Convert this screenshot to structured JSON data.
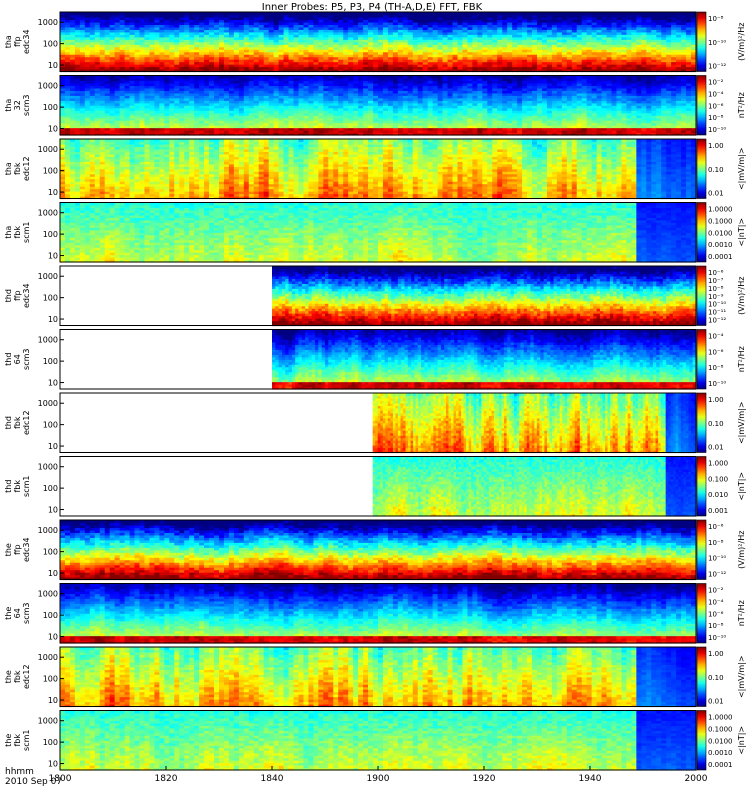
{
  "title": "Inner Probes: P5, P3, P4 (TH-A,D,E) FFT, FBK",
  "footer": {
    "time_label": "hhmm",
    "date_label": "2010 Sep 07"
  },
  "chart_data": {
    "type": "heatmap",
    "title": "Inner Probes: P5, P3, P4 (TH-A,D,E) FFT, FBK",
    "x_ticks": [
      "1800",
      "1820",
      "1840",
      "1900",
      "1920",
      "1940",
      "2000"
    ],
    "x_range": [
      "18:00",
      "20:00"
    ],
    "panels": [
      {
        "probe": "tha",
        "ylabel": [
          "tha",
          "ffp",
          "edc34"
        ],
        "yscale": "log",
        "yticks": [
          "10",
          "100",
          "1000"
        ],
        "cbar_label": "(V/m)²/Hz",
        "cbar_ticks": [
          "10⁻⁸",
          "10⁻¹⁰",
          "10⁻¹²"
        ],
        "data_start": "18:00",
        "kind": "ffp-e"
      },
      {
        "probe": "tha",
        "ylabel": [
          "tha",
          "32",
          "scm3"
        ],
        "yscale": "log",
        "yticks": [
          "10",
          "100",
          "1000"
        ],
        "cbar_label": "nT²/Hz",
        "cbar_ticks": [
          "10⁻²",
          "10⁻⁴",
          "10⁻⁶",
          "10⁻⁸",
          "10⁻¹⁰"
        ],
        "data_start": "18:00",
        "kind": "scm"
      },
      {
        "probe": "tha",
        "ylabel": [
          "tha",
          "fbk",
          "edc12"
        ],
        "yscale": "log",
        "yticks": [
          "10",
          "100",
          "1000"
        ],
        "cbar_label": "<|mV/m|>",
        "cbar_ticks": [
          "1.00",
          "0.10",
          "0.01"
        ],
        "data_start": "18:00",
        "kind": "fbk-e"
      },
      {
        "probe": "tha",
        "ylabel": [
          "tha",
          "fbk",
          "scm1"
        ],
        "yscale": "log",
        "yticks": [
          "10",
          "100",
          "1000"
        ],
        "cbar_label": "<|nT|>",
        "cbar_ticks": [
          "1.0000",
          "0.1000",
          "0.0100",
          "0.0010",
          "0.0001"
        ],
        "data_start": "18:00",
        "kind": "fbk-b"
      },
      {
        "probe": "thd",
        "ylabel": [
          "thd",
          "ffp",
          "edc34"
        ],
        "yscale": "log",
        "yticks": [
          "10",
          "100",
          "1000"
        ],
        "cbar_label": "(V/m)²/Hz",
        "cbar_ticks": [
          "10⁻⁶",
          "10⁻⁷",
          "10⁻⁸",
          "10⁻⁹",
          "10⁻¹⁰",
          "10⁻¹¹",
          "10⁻¹²"
        ],
        "data_start": "18:40",
        "kind": "ffp-e"
      },
      {
        "probe": "thd",
        "ylabel": [
          "thd",
          "64",
          "scm3"
        ],
        "yscale": "log",
        "yticks": [
          "10",
          "100",
          "1000"
        ],
        "cbar_label": "nT²/Hz",
        "cbar_ticks": [
          "10⁻⁴",
          "10⁻⁶",
          "10⁻⁸",
          "10⁻¹⁰"
        ],
        "data_start": "18:40",
        "kind": "scm"
      },
      {
        "probe": "thd",
        "ylabel": [
          "thd",
          "fbk",
          "edc12"
        ],
        "yscale": "log",
        "yticks": [
          "10",
          "100",
          "1000"
        ],
        "cbar_label": "<|mV/m|>",
        "cbar_ticks": [
          "1.00",
          "0.10",
          "0.01"
        ],
        "data_start": "18:59",
        "kind": "fbk-e"
      },
      {
        "probe": "thd",
        "ylabel": [
          "thd",
          "fbk",
          "scm1"
        ],
        "yscale": "log",
        "yticks": [
          "10",
          "100",
          "1000"
        ],
        "cbar_label": "<|nT|>",
        "cbar_ticks": [
          "1.000",
          "0.100",
          "0.010",
          "0.001"
        ],
        "data_start": "18:59",
        "kind": "fbk-b"
      },
      {
        "probe": "the",
        "ylabel": [
          "the",
          "ffp",
          "edc34"
        ],
        "yscale": "log",
        "yticks": [
          "10",
          "100",
          "1000"
        ],
        "cbar_label": "(V/m)²/Hz",
        "cbar_ticks": [
          "10⁻⁶",
          "10⁻⁸",
          "10⁻¹⁰",
          "10⁻¹²"
        ],
        "data_start": "18:00",
        "kind": "ffp-e"
      },
      {
        "probe": "the",
        "ylabel": [
          "the",
          "64",
          "scm3"
        ],
        "yscale": "log",
        "yticks": [
          "10",
          "100",
          "1000"
        ],
        "cbar_label": "nT²/Hz",
        "cbar_ticks": [
          "10⁻²",
          "10⁻⁴",
          "10⁻⁶",
          "10⁻⁸",
          "10⁻¹⁰"
        ],
        "data_start": "18:00",
        "kind": "scm"
      },
      {
        "probe": "the",
        "ylabel": [
          "the",
          "fbk",
          "edc12"
        ],
        "yscale": "log",
        "yticks": [
          "10",
          "100",
          "1000"
        ],
        "cbar_label": "<|mV/m|>",
        "cbar_ticks": [
          "1.00",
          "0.10",
          "0.01"
        ],
        "data_start": "18:00",
        "kind": "fbk-e"
      },
      {
        "probe": "the",
        "ylabel": [
          "the",
          "fbk",
          "scm1"
        ],
        "yscale": "log",
        "yticks": [
          "10",
          "100",
          "1000"
        ],
        "cbar_label": "<|nT|>",
        "cbar_ticks": [
          "1.0000",
          "0.1000",
          "0.0100",
          "0.0010",
          "0.0001"
        ],
        "data_start": "18:00",
        "kind": "fbk-b"
      }
    ]
  }
}
